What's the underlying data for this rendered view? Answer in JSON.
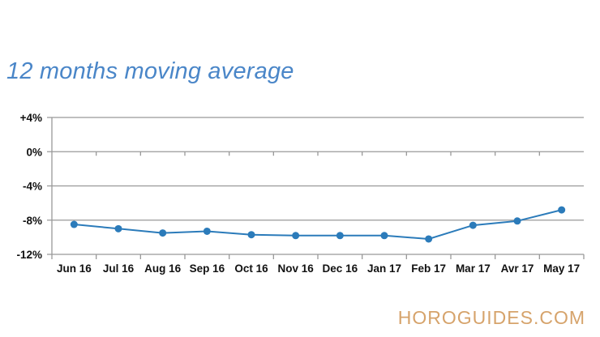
{
  "chart_data": {
    "type": "line",
    "title": "12 months moving average",
    "categories": [
      "Jun 16",
      "Jul 16",
      "Aug 16",
      "Sep 16",
      "Oct 16",
      "Nov 16",
      "Dec 16",
      "Jan 17",
      "Feb 17",
      "Mar 17",
      "Avr 17",
      "May 17"
    ],
    "series": [
      {
        "values": [
          -8.5,
          -9.0,
          -9.5,
          -9.3,
          -9.7,
          -9.8,
          -9.8,
          -9.8,
          -10.2,
          -8.6,
          -8.1,
          -6.8
        ]
      }
    ],
    "yticks": [
      4,
      0,
      -4,
      -8,
      -12
    ],
    "ytick_labels": [
      "+4%",
      "0%",
      "-4%",
      "-8%",
      "-12%"
    ],
    "ylim": [
      -12,
      4
    ],
    "xlabel": "",
    "ylabel": "",
    "grid": "horizontal",
    "colors": {
      "line": "#2b7bba",
      "title": "#4a86c8",
      "axis": "#999999"
    }
  },
  "watermark": "HOROGUIDES.COM"
}
